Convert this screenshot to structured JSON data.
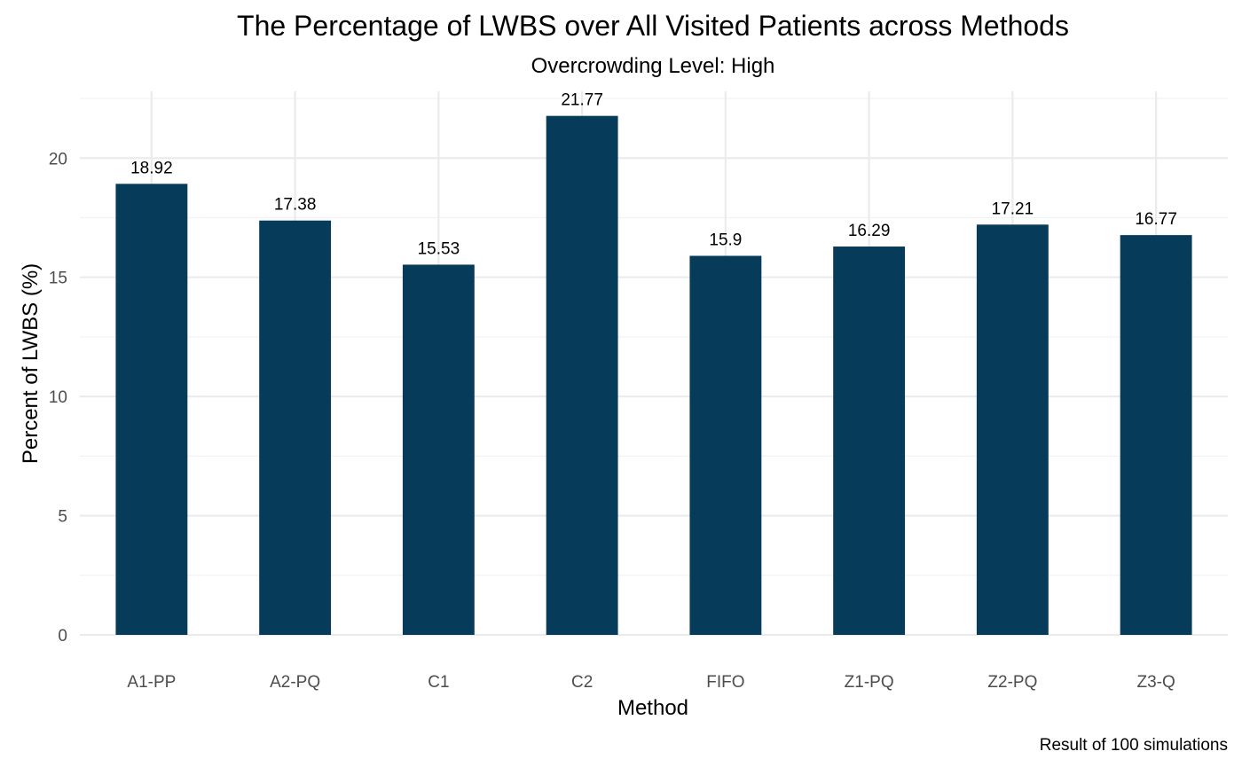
{
  "chart_data": {
    "type": "bar",
    "title": "The Percentage of LWBS over All Visited Patients across Methods",
    "subtitle": "Overcrowding Level: High",
    "xlabel": "Method",
    "ylabel": "Percent of LWBS (%)",
    "caption": "Result of 100 simulations",
    "categories": [
      "A1-PP",
      "A2-PQ",
      "C1",
      "C2",
      "FIFO",
      "Z1-PQ",
      "Z2-PQ",
      "Z3-Q"
    ],
    "values": [
      18.92,
      17.38,
      15.53,
      21.77,
      15.9,
      16.29,
      17.21,
      16.77
    ],
    "data_labels": [
      "18.92",
      "17.38",
      "15.53",
      "21.77",
      "15.9",
      "16.29",
      "17.21",
      "16.77"
    ],
    "y_ticks": [
      0,
      5,
      10,
      15,
      20
    ],
    "y_tick_labels": [
      "0",
      "5",
      "10",
      "15",
      "20"
    ],
    "ylim": [
      0,
      22.8
    ],
    "grid": true,
    "legend": "none",
    "bar_color": "#073b5a"
  }
}
